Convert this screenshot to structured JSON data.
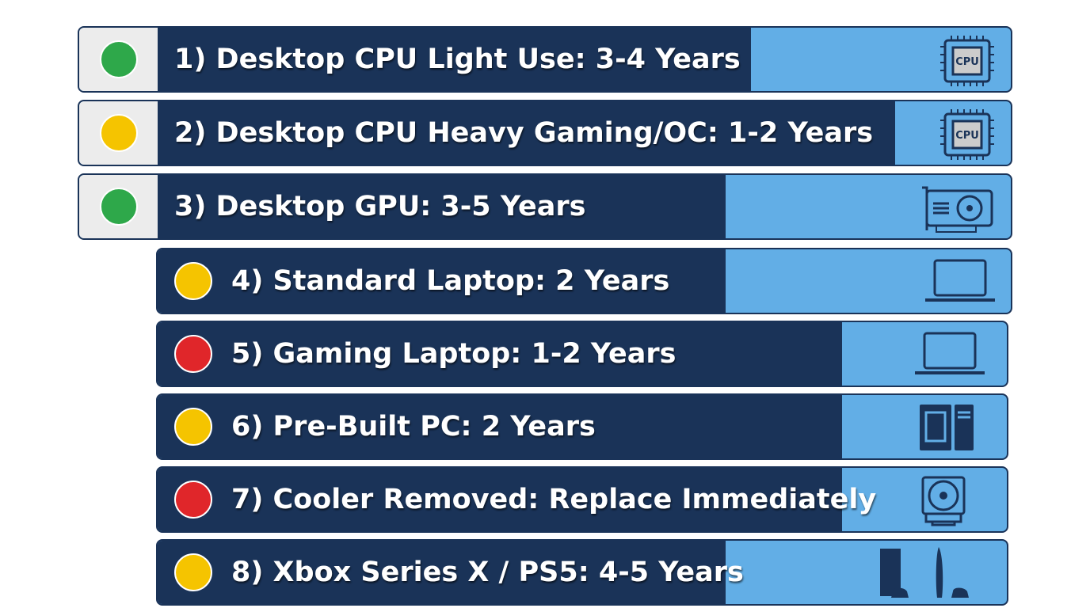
{
  "items": [
    {
      "label": "1) Desktop CPU Light Use: 3-4 Years",
      "status_color": "#2ea84a",
      "icon_text": "CPU"
    },
    {
      "label": "2) Desktop CPU Heavy Gaming/OC: 1-2 Years",
      "status_color": "#f5c400",
      "icon_text": "CPU"
    },
    {
      "label": "3) Desktop GPU: 3-5 Years",
      "status_color": "#2ea84a"
    },
    {
      "label": "4) Standard Laptop: 2 Years",
      "status_color": "#f5c400"
    },
    {
      "label": "5) Gaming Laptop: 1-2 Years",
      "status_color": "#e0262a"
    },
    {
      "label": "6) Pre-Built PC: 2 Years",
      "status_color": "#f5c400"
    },
    {
      "label": "7) Cooler Removed: Replace Immediately",
      "status_color": "#e0262a"
    },
    {
      "label": "8) Xbox Series X / PS5: 4-5 Years",
      "status_color": "#f5c400"
    }
  ]
}
